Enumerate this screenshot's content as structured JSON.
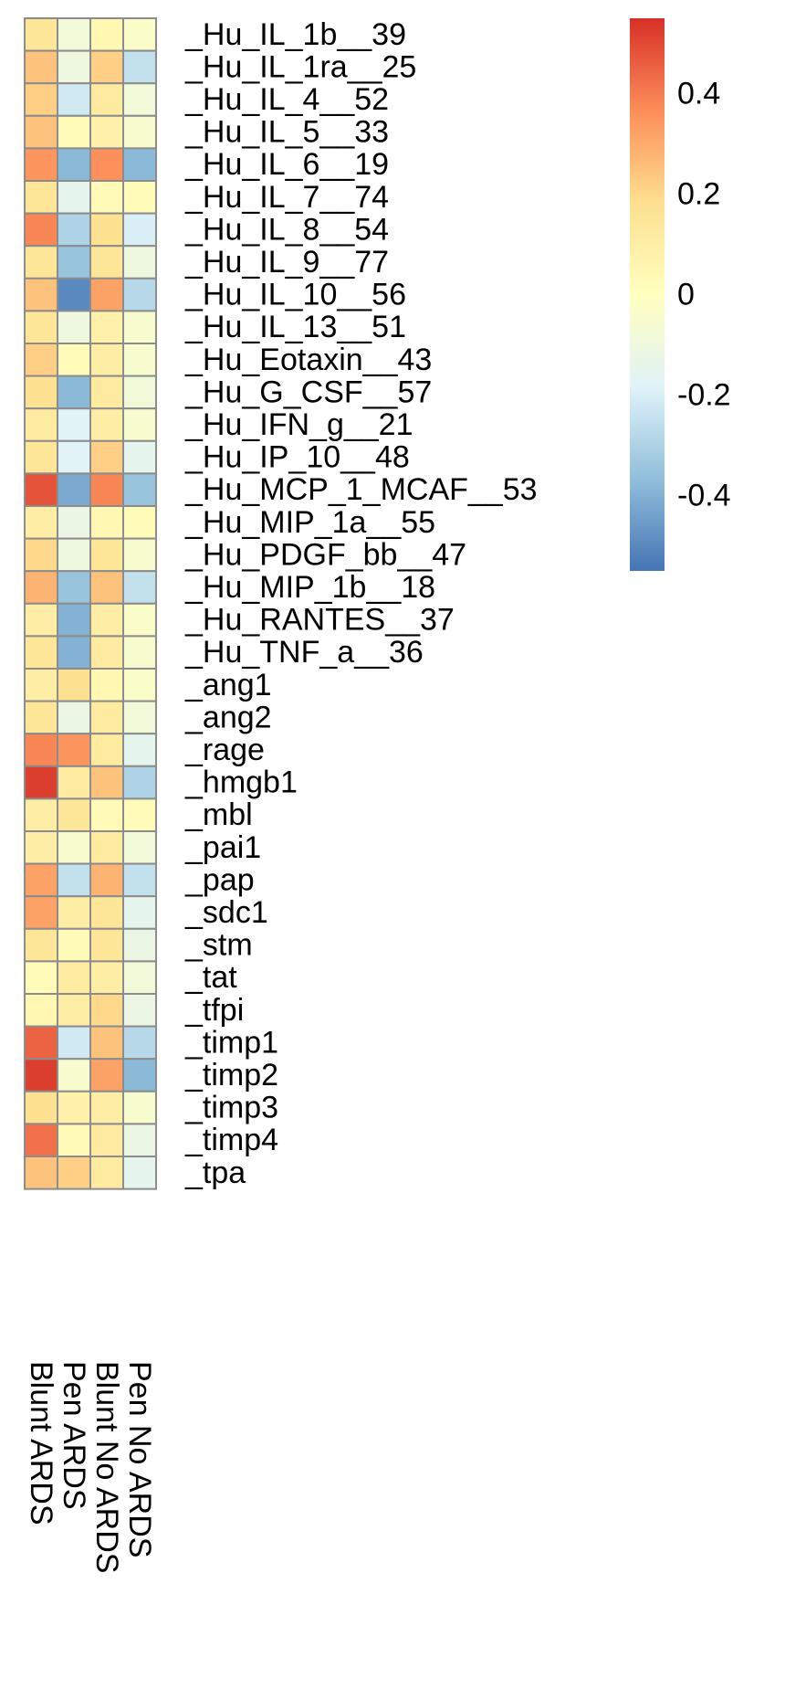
{
  "chart_data": {
    "type": "heatmap",
    "columns": [
      "Blunt ARDS",
      "Pen ARDS",
      "Blunt No ARDS",
      "Pen No ARDS"
    ],
    "rows": [
      "_Hu_IL_1b__39",
      "_Hu_IL_1ra__25",
      "_Hu_IL_4__52",
      "_Hu_IL_5__33",
      "_Hu_IL_6__19",
      "_Hu_IL_7__74",
      "_Hu_IL_8__54",
      "_Hu_IL_9__77",
      "_Hu_IL_10__56",
      "_Hu_IL_13__51",
      "_Hu_Eotaxin__43",
      "_Hu_G_CSF__57",
      "_Hu_IFN_g__21",
      "_Hu_IP_10__48",
      "_Hu_MCP_1_MCAF__53",
      "_Hu_MIP_1a__55",
      "_Hu_PDGF_bb__47",
      "_Hu_MIP_1b__18",
      "_Hu_RANTES__37",
      "_Hu_TNF_a__36",
      "_ang1",
      "_ang2",
      "_rage",
      "_hmgb1",
      "_mbl",
      "_pai1",
      "_pap",
      "_sdc1",
      "_stm",
      "_tat",
      "_tfpi",
      "_timp1",
      "_timp2",
      "_timp3",
      "_timp4",
      "_tpa"
    ],
    "values": [
      [
        0.15,
        -0.08,
        0.05,
        -0.03
      ],
      [
        0.25,
        -0.1,
        0.22,
        -0.25
      ],
      [
        0.22,
        -0.22,
        0.12,
        -0.08
      ],
      [
        0.25,
        0.02,
        0.08,
        -0.05
      ],
      [
        0.35,
        -0.38,
        0.36,
        -0.38
      ],
      [
        0.15,
        -0.15,
        0.03,
        0.02
      ],
      [
        0.38,
        -0.3,
        0.18,
        -0.2
      ],
      [
        0.15,
        -0.35,
        0.15,
        -0.1
      ],
      [
        0.25,
        -0.5,
        0.32,
        -0.28
      ],
      [
        0.15,
        -0.1,
        0.08,
        -0.05
      ],
      [
        0.22,
        0.02,
        0.1,
        -0.05
      ],
      [
        0.18,
        -0.38,
        0.12,
        -0.08
      ],
      [
        0.12,
        -0.18,
        0.1,
        -0.05
      ],
      [
        0.15,
        -0.18,
        0.22,
        -0.15
      ],
      [
        0.48,
        -0.42,
        0.38,
        -0.35
      ],
      [
        0.1,
        -0.12,
        0.05,
        0.02
      ],
      [
        0.2,
        -0.1,
        0.15,
        -0.05
      ],
      [
        0.28,
        -0.35,
        0.25,
        -0.25
      ],
      [
        0.1,
        -0.4,
        0.1,
        -0.03
      ],
      [
        0.15,
        -0.4,
        0.12,
        -0.05
      ],
      [
        0.1,
        0.18,
        0.05,
        -0.03
      ],
      [
        0.15,
        -0.12,
        0.12,
        -0.08
      ],
      [
        0.38,
        0.35,
        0.12,
        -0.15
      ],
      [
        0.52,
        0.12,
        0.25,
        -0.3
      ],
      [
        0.1,
        0.15,
        0.03,
        0.02
      ],
      [
        0.1,
        -0.05,
        0.12,
        -0.08
      ],
      [
        0.32,
        -0.25,
        0.28,
        -0.25
      ],
      [
        0.32,
        0.1,
        0.15,
        -0.15
      ],
      [
        0.15,
        0.03,
        0.15,
        -0.12
      ],
      [
        0.02,
        0.12,
        0.1,
        -0.08
      ],
      [
        0.05,
        0.1,
        0.2,
        -0.12
      ],
      [
        0.45,
        -0.22,
        0.25,
        -0.28
      ],
      [
        0.52,
        -0.05,
        0.32,
        -0.38
      ],
      [
        0.18,
        0.08,
        0.1,
        -0.05
      ],
      [
        0.42,
        0.03,
        0.12,
        -0.12
      ],
      [
        0.25,
        0.22,
        0.12,
        -0.15
      ]
    ],
    "color_scale": {
      "min": -0.55,
      "max": 0.55,
      "stops": [
        "#4575b4",
        "#91bfdb",
        "#e0f3f8",
        "#ffffbf",
        "#fee090",
        "#fc8d59",
        "#d73027"
      ]
    },
    "legend": {
      "placement": "top-right",
      "ticks": [
        0.4,
        0.2,
        0,
        -0.2,
        -0.4
      ],
      "tick_labels": [
        "0.4",
        "0.2",
        "0",
        "-0.2",
        "-0.4"
      ]
    },
    "grid": true,
    "border_color": "#8c8c8c"
  }
}
